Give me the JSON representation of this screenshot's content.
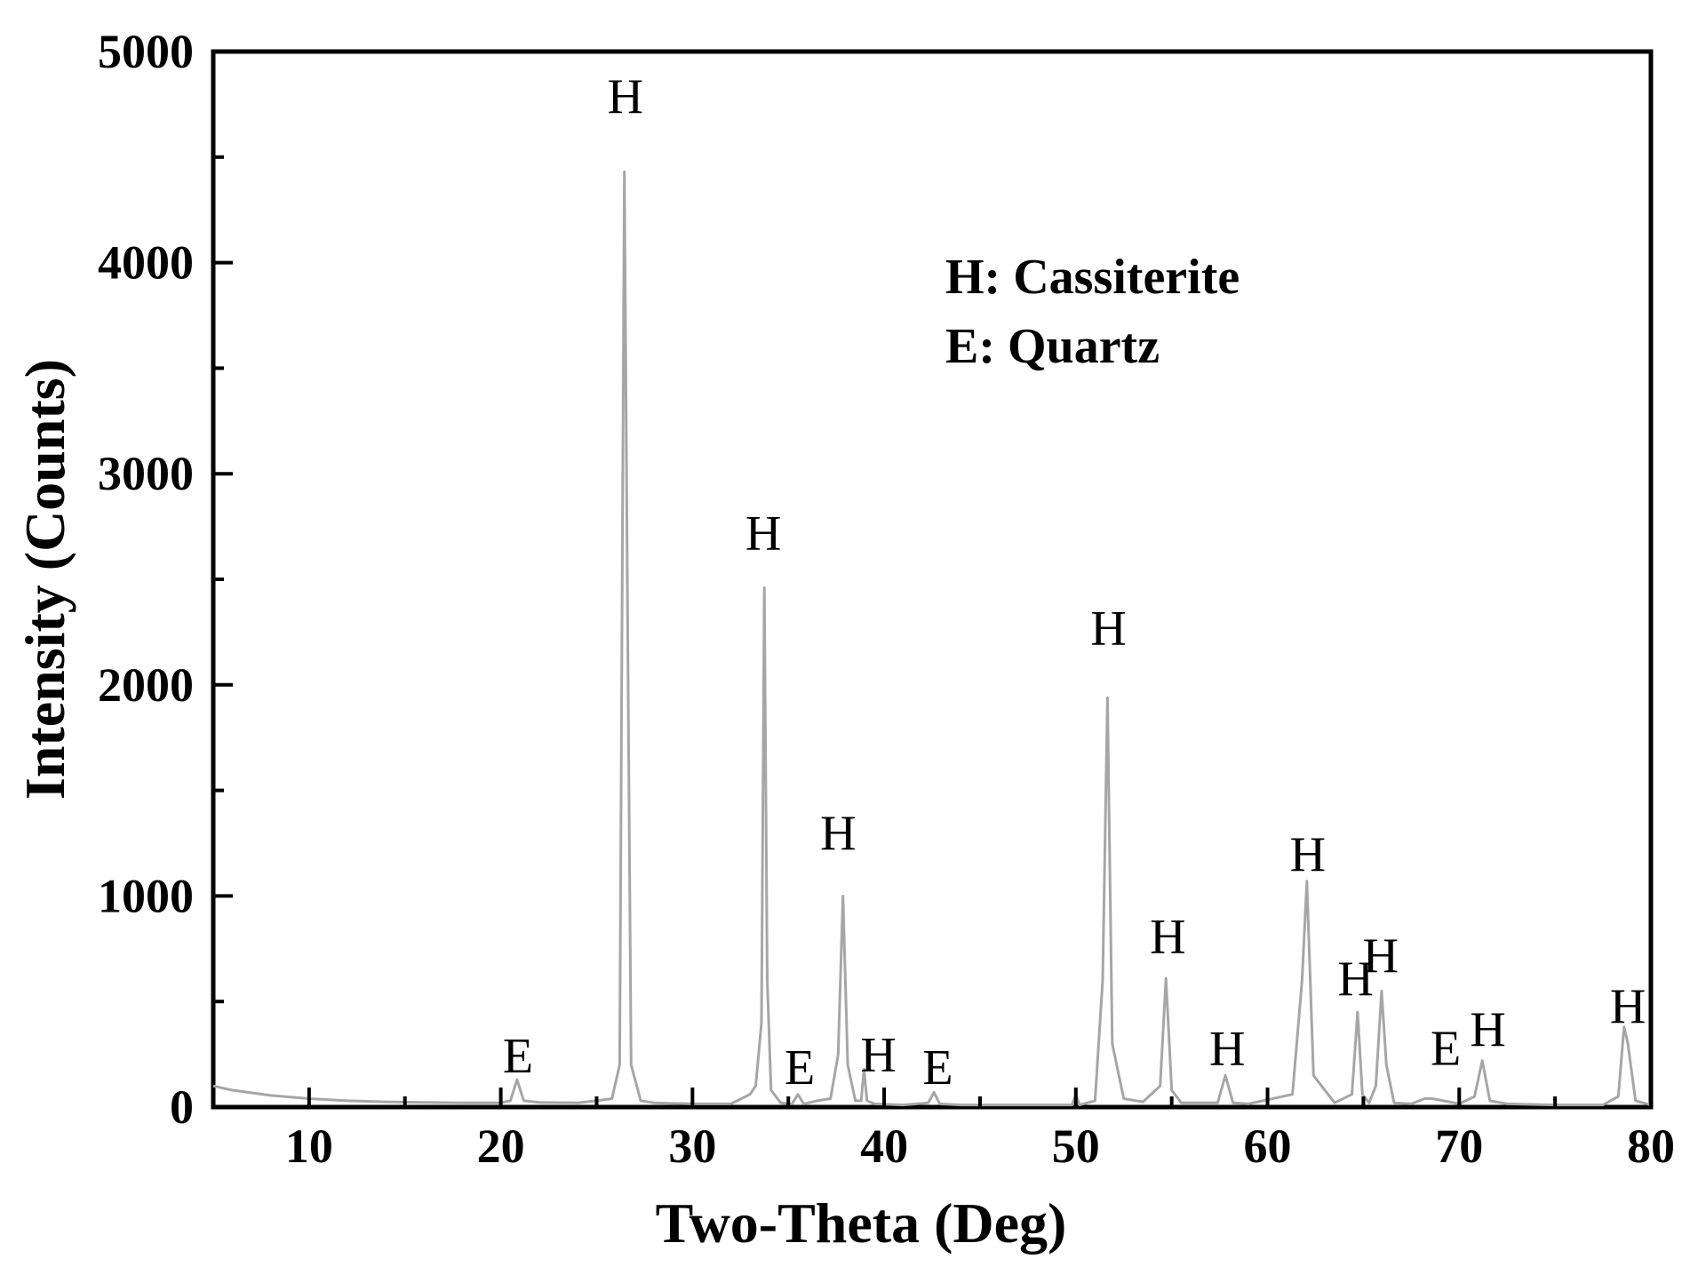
{
  "chart_data": {
    "type": "line",
    "title": "",
    "xlabel": "Two-Theta (Deg)",
    "ylabel": "Intensity (Counts)",
    "xlim": [
      5,
      80
    ],
    "ylim": [
      0,
      5000
    ],
    "x_ticks": [
      10,
      20,
      30,
      40,
      50,
      60,
      70,
      80
    ],
    "x_minor_ticks": [
      15,
      25,
      35,
      45,
      55,
      65,
      75
    ],
    "y_ticks": [
      0,
      1000,
      2000,
      3000,
      4000,
      5000
    ],
    "y_minor_ticks": [
      500,
      1500,
      2500,
      3500,
      4500
    ],
    "grid": false,
    "series_color": "#a6a6a6",
    "series": [
      {
        "x": [
          5,
          6,
          8,
          10,
          12,
          14,
          16,
          18,
          20,
          20.5,
          20.85,
          21.2,
          22,
          24,
          25,
          25.8,
          26.2,
          26.45,
          26.6,
          26.8,
          27.3,
          28,
          30,
          32,
          33,
          33.3,
          33.6,
          33.75,
          33.9,
          34.1,
          34.6,
          35.2,
          35.5,
          35.8,
          36.5,
          37.2,
          37.6,
          37.85,
          38.1,
          38.5,
          38.8,
          38.95,
          39.1,
          39.5,
          41,
          42.3,
          42.6,
          42.9,
          44,
          46,
          48,
          49.8,
          50,
          50.2,
          51,
          51.4,
          51.65,
          51.9,
          52.5,
          53.5,
          54.4,
          54.7,
          55,
          55.5,
          57.4,
          57.8,
          58.2,
          59,
          61.3,
          61.8,
          62.05,
          62.4,
          63.5,
          64.4,
          64.7,
          64.95,
          65.3,
          65.65,
          65.95,
          66.2,
          66.6,
          67.5,
          68.2,
          68.6,
          70,
          70.8,
          71.2,
          71.6,
          72.5,
          75,
          77.5,
          78.3,
          78.6,
          78.8,
          79.2,
          80
        ],
        "y": [
          100,
          80,
          55,
          40,
          30,
          25,
          22,
          20,
          20,
          30,
          130,
          30,
          22,
          20,
          30,
          40,
          200,
          4430,
          2500,
          200,
          30,
          20,
          15,
          15,
          60,
          100,
          400,
          2460,
          600,
          80,
          20,
          15,
          60,
          15,
          30,
          40,
          250,
          1000,
          200,
          30,
          30,
          180,
          30,
          15,
          10,
          20,
          70,
          15,
          10,
          10,
          10,
          10,
          60,
          10,
          30,
          600,
          1940,
          300,
          40,
          25,
          100,
          610,
          80,
          20,
          20,
          150,
          20,
          15,
          60,
          600,
          1070,
          150,
          20,
          60,
          450,
          60,
          20,
          100,
          550,
          200,
          20,
          15,
          40,
          40,
          15,
          50,
          220,
          30,
          15,
          10,
          10,
          50,
          380,
          300,
          30,
          10
        ]
      }
    ],
    "peak_labels": [
      {
        "text": "E",
        "x": 20.9,
        "y": 165
      },
      {
        "text": "H",
        "x": 26.5,
        "y": 4710
      },
      {
        "text": "H",
        "x": 33.7,
        "y": 2640
      },
      {
        "text": "E",
        "x": 35.6,
        "y": 110
      },
      {
        "text": "H",
        "x": 37.6,
        "y": 1220
      },
      {
        "text": "H",
        "x": 39.7,
        "y": 170
      },
      {
        "text": "E",
        "x": 42.8,
        "y": 110
      },
      {
        "text": "H",
        "x": 51.7,
        "y": 2190
      },
      {
        "text": "H",
        "x": 54.8,
        "y": 730
      },
      {
        "text": "H",
        "x": 57.9,
        "y": 200
      },
      {
        "text": "H",
        "x": 62.1,
        "y": 1120
      },
      {
        "text": "H",
        "x": 64.6,
        "y": 530
      },
      {
        "text": "H",
        "x": 65.9,
        "y": 640
      },
      {
        "text": "E",
        "x": 69.3,
        "y": 200
      },
      {
        "text": "H",
        "x": 71.5,
        "y": 290
      },
      {
        "text": "H",
        "x": 78.8,
        "y": 400
      }
    ],
    "legend": {
      "placement": "top-right",
      "entries": [
        "H: Cassiterite",
        "E: Quartz"
      ]
    }
  }
}
